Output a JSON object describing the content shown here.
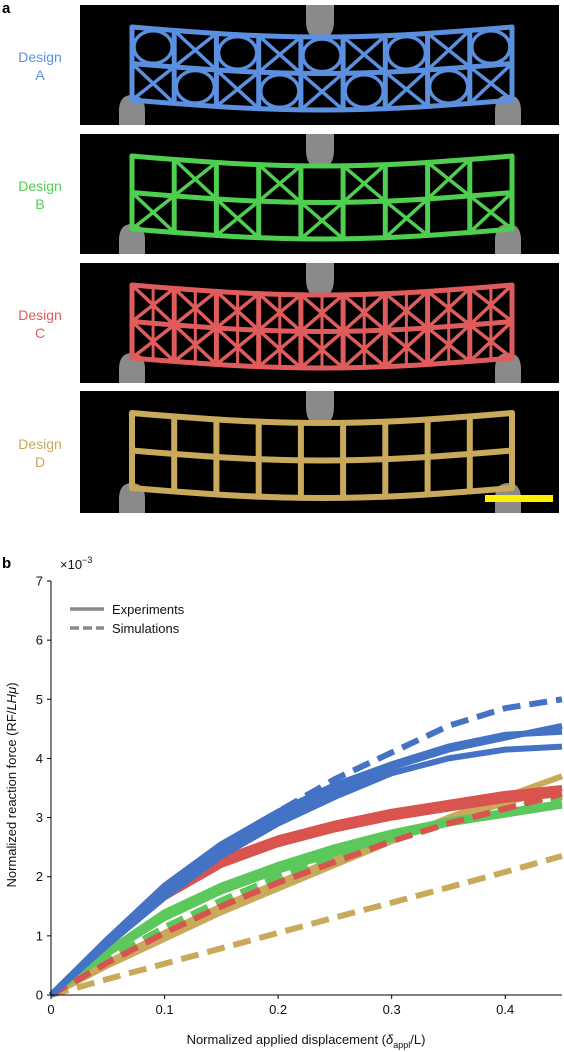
{
  "panel_a": {
    "letter": "a",
    "designs": [
      {
        "word": "Design",
        "letter": "A",
        "color": "#5b8fe0",
        "pattern": "circle-cross"
      },
      {
        "word": "Design",
        "letter": "B",
        "color": "#4fcf4f",
        "pattern": "alt-cross"
      },
      {
        "word": "Design",
        "letter": "C",
        "color": "#e05c5c",
        "pattern": "full-cross"
      },
      {
        "word": "Design",
        "letter": "D",
        "color": "#c9a95a",
        "pattern": "grid"
      }
    ],
    "support_color": "#8a8a8a",
    "scale_bar_color": "#ffef00"
  },
  "panel_b": {
    "letter": "b"
  },
  "chart_data": {
    "type": "line",
    "xlabel": "Normalized applied displacement (δappl/L)",
    "xlabel_main": "Normalized applied displacement (",
    "xlabel_delta": "δ",
    "xlabel_sub": "appl",
    "xlabel_end": "/L)",
    "ylabel": "Normalized reaction force (RF/LHμ)",
    "ylabel_main": "Normalized reaction force (RF/",
    "ylabel_italic": "LHμ",
    "ylabel_end": ")",
    "y_multiplier": "×10",
    "y_multiplier_exp": "−3",
    "xlim": [
      0,
      0.45
    ],
    "ylim": [
      0,
      7
    ],
    "xticks": [
      0,
      0.1,
      0.2,
      0.3,
      0.4
    ],
    "xtick_labels": [
      "0",
      "0.1",
      "0.2",
      "0.3",
      "0.4"
    ],
    "yticks": [
      0,
      1,
      2,
      3,
      4,
      5,
      6,
      7
    ],
    "ytick_labels": [
      "0",
      "1",
      "2",
      "3",
      "4",
      "5",
      "6",
      "7"
    ],
    "grid": false,
    "legend": {
      "placement": "top-left",
      "entries": [
        {
          "label": "Experiments",
          "style": "solid",
          "color": "#8a8a8a"
        },
        {
          "label": "Simulations",
          "style": "dashed",
          "color": "#8a8a8a"
        }
      ]
    },
    "series": [
      {
        "design": "A",
        "kind": "experiment",
        "color": "#4472c4",
        "x": [
          0,
          0.05,
          0.1,
          0.15,
          0.2,
          0.25,
          0.3,
          0.35,
          0.4,
          0.45
        ],
        "y": [
          0,
          0.95,
          1.85,
          2.55,
          3.1,
          3.55,
          3.9,
          4.2,
          4.4,
          4.45
        ]
      },
      {
        "design": "A",
        "kind": "experiment",
        "color": "#4472c4",
        "x": [
          0,
          0.05,
          0.1,
          0.15,
          0.2,
          0.25,
          0.3,
          0.35,
          0.4,
          0.45
        ],
        "y": [
          0,
          0.9,
          1.75,
          2.45,
          3.0,
          3.45,
          3.85,
          4.15,
          4.35,
          4.55
        ]
      },
      {
        "design": "A",
        "kind": "experiment",
        "color": "#4472c4",
        "x": [
          0,
          0.05,
          0.1,
          0.15,
          0.2,
          0.25,
          0.3,
          0.35,
          0.4,
          0.45
        ],
        "y": [
          0,
          0.85,
          1.65,
          2.35,
          2.9,
          3.35,
          3.75,
          4.0,
          4.15,
          4.2
        ]
      },
      {
        "design": "A",
        "kind": "simulation",
        "color": "#4472c4",
        "x": [
          0,
          0.05,
          0.1,
          0.15,
          0.2,
          0.25,
          0.3,
          0.35,
          0.4,
          0.45
        ],
        "y": [
          0,
          0.85,
          1.7,
          2.45,
          3.1,
          3.65,
          4.1,
          4.55,
          4.85,
          5.0
        ]
      },
      {
        "design": "B",
        "kind": "experiment",
        "color": "#5cc85c",
        "x": [
          0,
          0.05,
          0.1,
          0.15,
          0.2,
          0.25,
          0.3,
          0.35,
          0.4,
          0.45
        ],
        "y": [
          0,
          0.75,
          1.4,
          1.85,
          2.2,
          2.5,
          2.75,
          2.95,
          3.1,
          3.25
        ]
      },
      {
        "design": "B",
        "kind": "experiment",
        "color": "#5cc85c",
        "x": [
          0,
          0.05,
          0.1,
          0.15,
          0.2,
          0.25,
          0.3,
          0.35,
          0.4,
          0.45
        ],
        "y": [
          0,
          0.7,
          1.3,
          1.75,
          2.1,
          2.4,
          2.65,
          2.9,
          3.05,
          3.2
        ]
      },
      {
        "design": "B",
        "kind": "simulation",
        "color": "#5cc85c",
        "x": [
          0,
          0.05,
          0.1,
          0.15,
          0.2,
          0.25,
          0.3,
          0.35,
          0.4,
          0.45
        ],
        "y": [
          0,
          0.6,
          1.15,
          1.6,
          2.0,
          2.35,
          2.65,
          2.9,
          3.15,
          3.35
        ]
      },
      {
        "design": "C",
        "kind": "experiment",
        "color": "#d9534f",
        "x": [
          0,
          0.05,
          0.1,
          0.15,
          0.2,
          0.25,
          0.3,
          0.35,
          0.4,
          0.45
        ],
        "y": [
          0,
          0.95,
          1.75,
          2.3,
          2.65,
          2.9,
          3.1,
          3.25,
          3.4,
          3.5
        ]
      },
      {
        "design": "C",
        "kind": "experiment",
        "color": "#d9534f",
        "x": [
          0,
          0.05,
          0.1,
          0.15,
          0.2,
          0.25,
          0.3,
          0.35,
          0.4,
          0.45
        ],
        "y": [
          0,
          0.9,
          1.65,
          2.2,
          2.55,
          2.8,
          3.0,
          3.15,
          3.3,
          3.4
        ]
      },
      {
        "design": "C",
        "kind": "simulation",
        "color": "#d9534f",
        "x": [
          0,
          0.05,
          0.1,
          0.15,
          0.2,
          0.25,
          0.3,
          0.35,
          0.4,
          0.45
        ],
        "y": [
          0,
          0.55,
          1.05,
          1.5,
          1.9,
          2.25,
          2.6,
          2.9,
          3.15,
          3.4
        ]
      },
      {
        "design": "D",
        "kind": "experiment",
        "color": "#c9a95a",
        "x": [
          0,
          0.05,
          0.1,
          0.15,
          0.2,
          0.25,
          0.3,
          0.35,
          0.4,
          0.45
        ],
        "y": [
          0,
          0.5,
          0.95,
          1.4,
          1.8,
          2.2,
          2.6,
          3.0,
          3.35,
          3.7
        ]
      },
      {
        "design": "D",
        "kind": "experiment",
        "color": "#c9a95a",
        "x": [
          0,
          0.05,
          0.1,
          0.15,
          0.2,
          0.25,
          0.3,
          0.35,
          0.4,
          0.45
        ],
        "y": [
          0,
          0.55,
          1.05,
          1.5,
          1.9,
          2.3,
          2.65,
          2.95,
          3.25,
          3.5
        ]
      },
      {
        "design": "D",
        "kind": "simulation",
        "color": "#c9a95a",
        "x": [
          0,
          0.05,
          0.1,
          0.15,
          0.2,
          0.25,
          0.3,
          0.35,
          0.4,
          0.45
        ],
        "y": [
          0,
          0.27,
          0.53,
          0.79,
          1.05,
          1.31,
          1.56,
          1.82,
          2.08,
          2.35
        ]
      }
    ]
  }
}
